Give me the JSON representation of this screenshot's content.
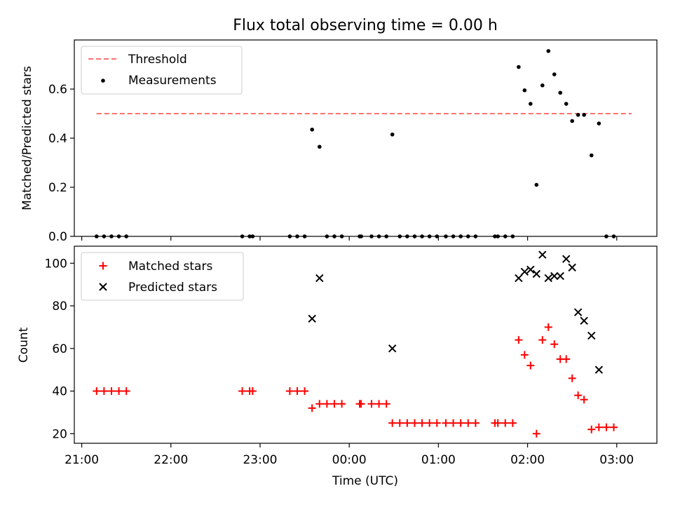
{
  "chart_data": [
    {
      "type": "scatter",
      "title": "Flux total observing time = 0.00 h",
      "xlabel": "",
      "ylabel": "Matched/Predicted stars",
      "xlim": [
        "20:55",
        "03:27"
      ],
      "ylim": [
        0,
        0.8
      ],
      "yticks": [
        "0.0",
        "0.2",
        "0.4",
        "0.6"
      ],
      "legend_position": "top-left",
      "threshold": {
        "label": "Threshold",
        "value": 0.5,
        "x_start": "21:10",
        "x_end": "03:10",
        "color": "#ff7070",
        "style": "dashed"
      },
      "measurements": {
        "label": "Measurements",
        "color": "#000000",
        "points": [
          [
            "21:10",
            0.0
          ],
          [
            "21:15",
            0.0
          ],
          [
            "21:20",
            0.0
          ],
          [
            "21:25",
            0.0
          ],
          [
            "21:30",
            0.0
          ],
          [
            "22:48",
            0.0
          ],
          [
            "22:53",
            0.0
          ],
          [
            "22:55",
            0.0
          ],
          [
            "23:20",
            0.0
          ],
          [
            "23:25",
            0.0
          ],
          [
            "23:30",
            0.0
          ],
          [
            "23:35",
            0.435
          ],
          [
            "23:40",
            0.365
          ],
          [
            "23:45",
            0.0
          ],
          [
            "23:50",
            0.0
          ],
          [
            "23:55",
            0.0
          ],
          [
            "00:07",
            0.0
          ],
          [
            "00:08",
            0.0
          ],
          [
            "00:15",
            0.0
          ],
          [
            "00:20",
            0.0
          ],
          [
            "00:25",
            0.0
          ],
          [
            "00:29",
            0.415
          ],
          [
            "00:34",
            0.0
          ],
          [
            "00:39",
            0.0
          ],
          [
            "00:44",
            0.0
          ],
          [
            "00:49",
            0.0
          ],
          [
            "00:54",
            0.0
          ],
          [
            "00:59",
            0.0
          ],
          [
            "01:05",
            0.0
          ],
          [
            "01:10",
            0.0
          ],
          [
            "01:15",
            0.0
          ],
          [
            "01:20",
            0.0
          ],
          [
            "01:25",
            0.0
          ],
          [
            "01:38",
            0.0
          ],
          [
            "01:40",
            0.0
          ],
          [
            "01:45",
            0.0
          ],
          [
            "01:50",
            0.0
          ],
          [
            "01:54",
            0.69
          ],
          [
            "01:58",
            0.595
          ],
          [
            "02:02",
            0.54
          ],
          [
            "02:06",
            0.21
          ],
          [
            "02:10",
            0.615
          ],
          [
            "02:14",
            0.755
          ],
          [
            "02:18",
            0.66
          ],
          [
            "02:22",
            0.585
          ],
          [
            "02:26",
            0.54
          ],
          [
            "02:30",
            0.47
          ],
          [
            "02:34",
            0.495
          ],
          [
            "02:38",
            0.495
          ],
          [
            "02:43",
            0.33
          ],
          [
            "02:48",
            0.46
          ],
          [
            "02:53",
            0.0
          ],
          [
            "02:58",
            0.0
          ]
        ]
      }
    },
    {
      "type": "scatter",
      "title": "",
      "xlabel": "Time (UTC)",
      "ylabel": "Count",
      "xlim": [
        "20:55",
        "03:27"
      ],
      "ylim": [
        15.5,
        108
      ],
      "yticks": [
        "20",
        "40",
        "60",
        "80",
        "100"
      ],
      "xticks": [
        "21:00",
        "22:00",
        "23:00",
        "00:00",
        "01:00",
        "02:00",
        "03:00"
      ],
      "legend_position": "top-left",
      "series": [
        {
          "name": "Matched stars",
          "marker": "plus",
          "color": "#ff0000",
          "points": [
            [
              "21:10",
              40
            ],
            [
              "21:15",
              40
            ],
            [
              "21:20",
              40
            ],
            [
              "21:25",
              40
            ],
            [
              "21:30",
              40
            ],
            [
              "22:48",
              40
            ],
            [
              "22:53",
              40
            ],
            [
              "22:55",
              40
            ],
            [
              "23:20",
              40
            ],
            [
              "23:25",
              40
            ],
            [
              "23:30",
              40
            ],
            [
              "23:35",
              32
            ],
            [
              "23:40",
              34
            ],
            [
              "23:45",
              34
            ],
            [
              "23:50",
              34
            ],
            [
              "23:55",
              34
            ],
            [
              "00:07",
              34
            ],
            [
              "00:08",
              34
            ],
            [
              "00:15",
              34
            ],
            [
              "00:20",
              34
            ],
            [
              "00:25",
              34
            ],
            [
              "00:29",
              25
            ],
            [
              "00:34",
              25
            ],
            [
              "00:39",
              25
            ],
            [
              "00:44",
              25
            ],
            [
              "00:49",
              25
            ],
            [
              "00:54",
              25
            ],
            [
              "00:59",
              25
            ],
            [
              "01:05",
              25
            ],
            [
              "01:10",
              25
            ],
            [
              "01:15",
              25
            ],
            [
              "01:20",
              25
            ],
            [
              "01:25",
              25
            ],
            [
              "01:38",
              25
            ],
            [
              "01:40",
              25
            ],
            [
              "01:45",
              25
            ],
            [
              "01:50",
              25
            ],
            [
              "01:54",
              64
            ],
            [
              "01:58",
              57
            ],
            [
              "02:02",
              52
            ],
            [
              "02:06",
              20
            ],
            [
              "02:10",
              64
            ],
            [
              "02:14",
              70
            ],
            [
              "02:18",
              62
            ],
            [
              "02:22",
              55
            ],
            [
              "02:26",
              55
            ],
            [
              "02:30",
              46
            ],
            [
              "02:34",
              38
            ],
            [
              "02:38",
              36
            ],
            [
              "02:43",
              22
            ],
            [
              "02:48",
              23
            ],
            [
              "02:53",
              23
            ],
            [
              "02:58",
              23
            ]
          ]
        },
        {
          "name": "Predicted stars",
          "marker": "x",
          "color": "#000000",
          "points": [
            [
              "23:35",
              74
            ],
            [
              "23:40",
              93
            ],
            [
              "00:29",
              60
            ],
            [
              "01:54",
              93
            ],
            [
              "01:58",
              96
            ],
            [
              "02:02",
              97
            ],
            [
              "02:06",
              95
            ],
            [
              "02:10",
              104
            ],
            [
              "02:14",
              93
            ],
            [
              "02:18",
              94
            ],
            [
              "02:22",
              94
            ],
            [
              "02:26",
              102
            ],
            [
              "02:30",
              98
            ],
            [
              "02:34",
              77
            ],
            [
              "02:38",
              73
            ],
            [
              "02:43",
              66
            ],
            [
              "02:48",
              50
            ]
          ]
        }
      ]
    }
  ]
}
